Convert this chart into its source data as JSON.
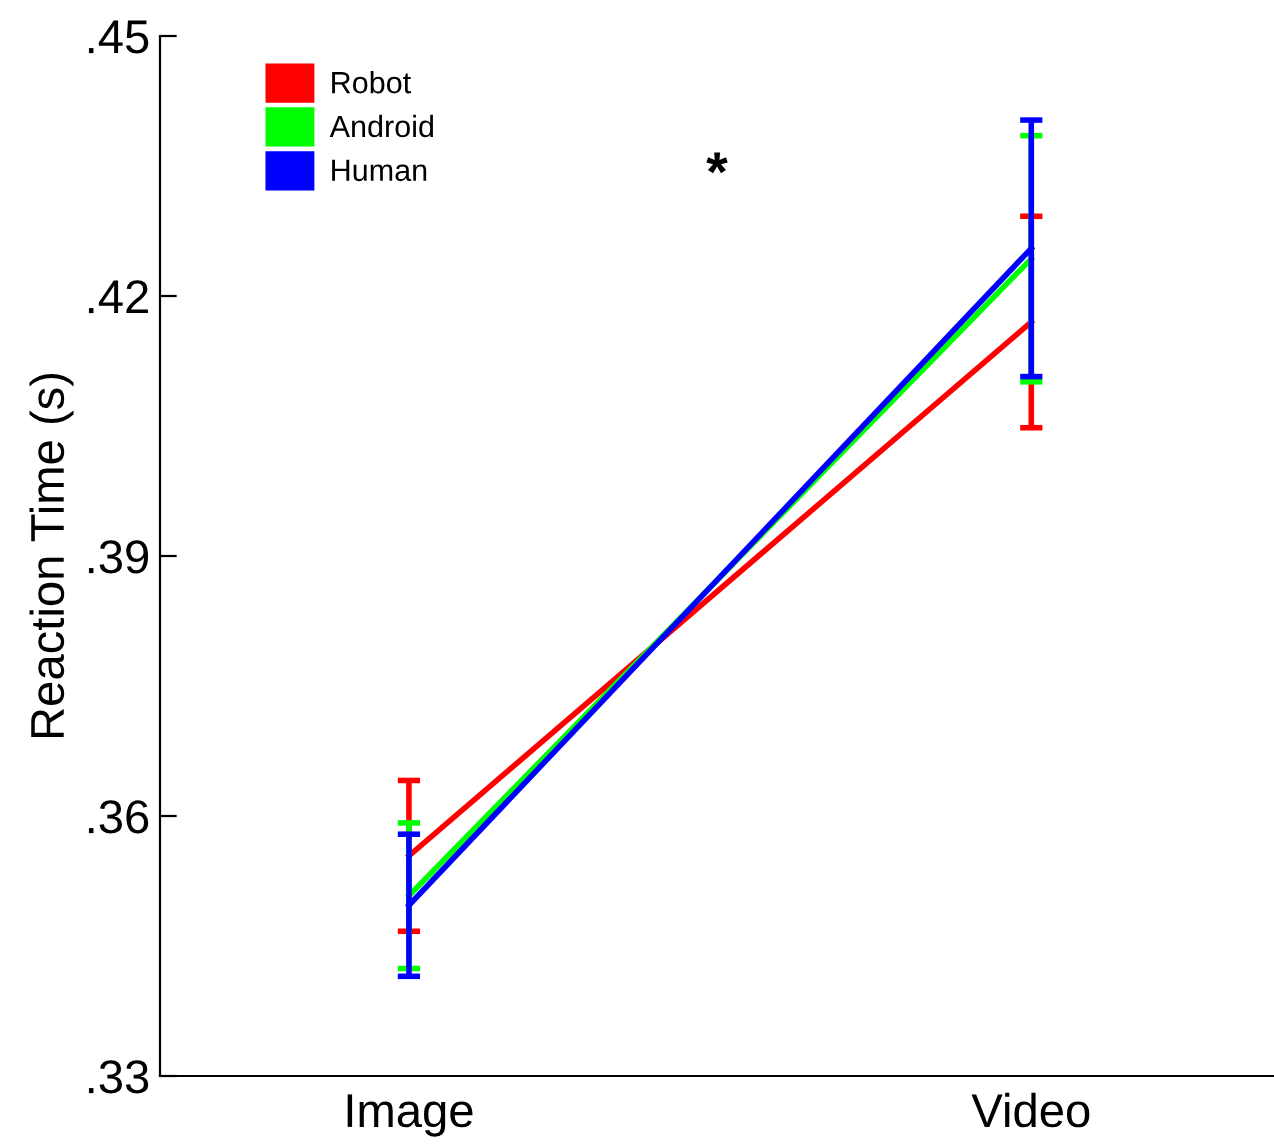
{
  "chart_data": {
    "type": "line",
    "ylabel": "Reaction Time (s)",
    "categories": [
      "Image",
      "Video"
    ],
    "series": [
      {
        "name": "Robot",
        "color": "#ff0000",
        "values": [
          0.3554,
          0.417
        ],
        "errors": [
          0.0087,
          0.0122
        ]
      },
      {
        "name": "Android",
        "color": "#00ff00",
        "values": [
          0.3508,
          0.4243
        ],
        "errors": [
          0.0084,
          0.0142
        ]
      },
      {
        "name": "Human",
        "color": "#0000ff",
        "values": [
          0.3497,
          0.4255
        ],
        "errors": [
          0.0082,
          0.0148
        ]
      }
    ],
    "ylim": [
      0.33,
      0.45
    ],
    "yticks": [
      {
        "value": 0.33,
        "label": ".33"
      },
      {
        "value": 0.36,
        "label": ".36"
      },
      {
        "value": 0.39,
        "label": ".39"
      },
      {
        "value": 0.42,
        "label": ".42"
      },
      {
        "value": 0.45,
        "label": ".45"
      }
    ],
    "annotations": [
      "*"
    ],
    "legend": "top left",
    "grid": false,
    "marker": "none",
    "line_style": "solid"
  }
}
